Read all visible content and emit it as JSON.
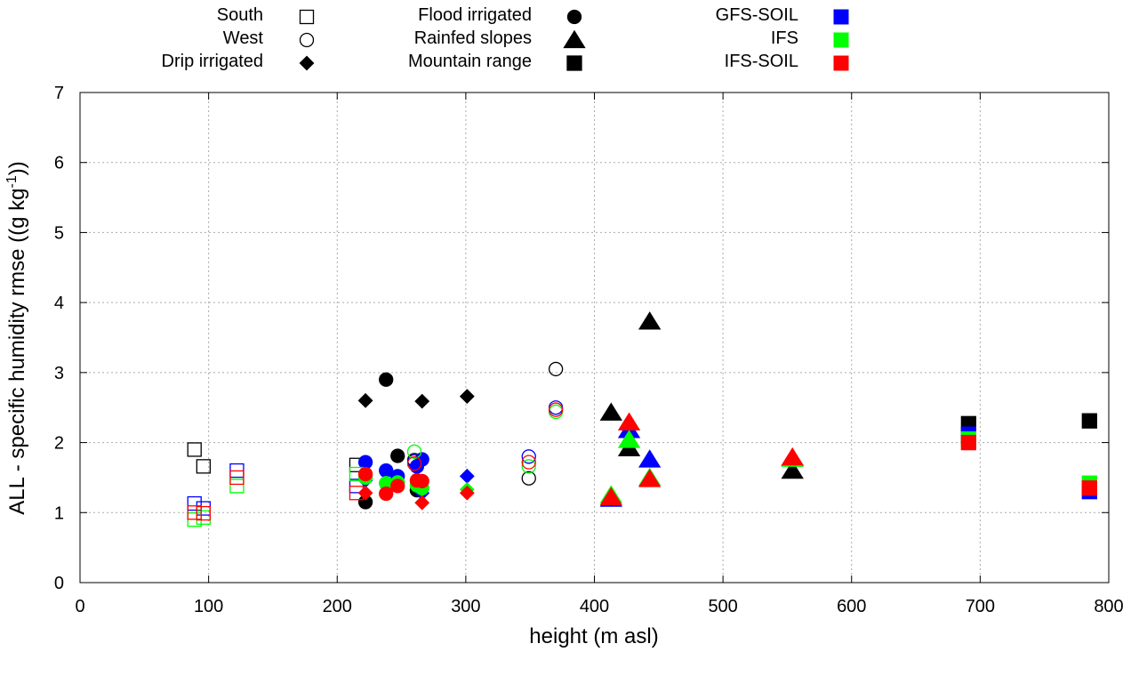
{
  "chart_data": {
    "type": "scatter",
    "title": "",
    "xlabel": "height (m asl)",
    "ylabel_prefix": "ALL - specific humidity rmse ((g kg",
    "ylabel_sup": "-1",
    "ylabel_suffix": "))",
    "xlim": [
      0,
      800
    ],
    "ylim": [
      0,
      7
    ],
    "xticks": [
      0,
      100,
      200,
      300,
      400,
      500,
      600,
      700,
      800
    ],
    "yticks": [
      0,
      1,
      2,
      3,
      4,
      5,
      6,
      7
    ],
    "grid": true,
    "legend_position": "top",
    "legend_groups": [
      {
        "label": "South",
        "marker": "square-open"
      },
      {
        "label": "West",
        "marker": "circle-open"
      },
      {
        "label": "Drip irrigated",
        "marker": "diamond"
      },
      {
        "label": "Flood irrigated",
        "marker": "circle"
      },
      {
        "label": "Rainfed slopes",
        "marker": "triangle"
      },
      {
        "label": "Mountain range",
        "marker": "square"
      }
    ],
    "legend_models": [
      {
        "label": "GFS-SOIL",
        "color": "#0000ff"
      },
      {
        "label": "IFS",
        "color": "#00ff00"
      },
      {
        "label": "IFS-SOIL",
        "color": "#ff0000"
      }
    ],
    "colors": {
      "OBS": "#000000",
      "GFS-SOIL": "#0000ff",
      "IFS": "#00ff00",
      "IFS-SOIL": "#ff0000"
    },
    "series": [
      {
        "name": "OBS",
        "points": [
          {
            "x": 89,
            "y": 1.9,
            "group": "South"
          },
          {
            "x": 96,
            "y": 1.66,
            "group": "South"
          },
          {
            "x": 215,
            "y": 1.68,
            "group": "South"
          },
          {
            "x": 260,
            "y": 1.75,
            "group": "West"
          },
          {
            "x": 349,
            "y": 1.49,
            "group": "West"
          },
          {
            "x": 370,
            "y": 3.05,
            "group": "West"
          },
          {
            "x": 222,
            "y": 2.6,
            "group": "Drip irrigated"
          },
          {
            "x": 266,
            "y": 2.59,
            "group": "Drip irrigated"
          },
          {
            "x": 301,
            "y": 2.66,
            "group": "Drip irrigated"
          },
          {
            "x": 222,
            "y": 1.15,
            "group": "Flood irrigated"
          },
          {
            "x": 238,
            "y": 2.9,
            "group": "Flood irrigated"
          },
          {
            "x": 247,
            "y": 1.81,
            "group": "Flood irrigated"
          },
          {
            "x": 262,
            "y": 1.32,
            "group": "Flood irrigated"
          },
          {
            "x": 413,
            "y": 2.43,
            "group": "Rainfed slopes"
          },
          {
            "x": 427,
            "y": 1.92,
            "group": "Rainfed slopes"
          },
          {
            "x": 443,
            "y": 3.73,
            "group": "Rainfed slopes"
          },
          {
            "x": 554,
            "y": 1.6,
            "group": "Rainfed slopes"
          },
          {
            "x": 691,
            "y": 2.27,
            "group": "Mountain range"
          },
          {
            "x": 785,
            "y": 2.31,
            "group": "Mountain range"
          }
        ]
      },
      {
        "name": "GFS-SOIL",
        "points": [
          {
            "x": 89,
            "y": 1.13,
            "group": "South"
          },
          {
            "x": 96,
            "y": 1.06,
            "group": "South"
          },
          {
            "x": 122,
            "y": 1.6,
            "group": "South"
          },
          {
            "x": 215,
            "y": 1.38,
            "group": "South"
          },
          {
            "x": 260,
            "y": 1.73,
            "group": "West"
          },
          {
            "x": 349,
            "y": 1.8,
            "group": "West"
          },
          {
            "x": 370,
            "y": 2.5,
            "group": "West"
          },
          {
            "x": 222,
            "y": 1.46,
            "group": "Drip irrigated"
          },
          {
            "x": 266,
            "y": 1.28,
            "group": "Drip irrigated"
          },
          {
            "x": 301,
            "y": 1.52,
            "group": "Drip irrigated"
          },
          {
            "x": 222,
            "y": 1.72,
            "group": "Flood irrigated"
          },
          {
            "x": 238,
            "y": 1.6,
            "group": "Flood irrigated"
          },
          {
            "x": 247,
            "y": 1.52,
            "group": "Flood irrigated"
          },
          {
            "x": 262,
            "y": 1.66,
            "group": "Flood irrigated"
          },
          {
            "x": 266,
            "y": 1.76,
            "group": "Flood irrigated"
          },
          {
            "x": 413,
            "y": 1.2,
            "group": "Rainfed slopes"
          },
          {
            "x": 427,
            "y": 2.18,
            "group": "Rainfed slopes"
          },
          {
            "x": 443,
            "y": 1.76,
            "group": "Rainfed slopes"
          },
          {
            "x": 554,
            "y": 1.78,
            "group": "Rainfed slopes"
          },
          {
            "x": 691,
            "y": 2.12,
            "group": "Mountain range"
          },
          {
            "x": 785,
            "y": 1.3,
            "group": "Mountain range"
          }
        ]
      },
      {
        "name": "IFS",
        "points": [
          {
            "x": 89,
            "y": 0.9,
            "group": "South"
          },
          {
            "x": 96,
            "y": 0.93,
            "group": "South"
          },
          {
            "x": 122,
            "y": 1.38,
            "group": "South"
          },
          {
            "x": 215,
            "y": 1.55,
            "group": "South"
          },
          {
            "x": 260,
            "y": 1.87,
            "group": "West"
          },
          {
            "x": 349,
            "y": 1.66,
            "group": "West"
          },
          {
            "x": 370,
            "y": 2.44,
            "group": "West"
          },
          {
            "x": 222,
            "y": 1.53,
            "group": "Drip irrigated"
          },
          {
            "x": 266,
            "y": 1.33,
            "group": "Drip irrigated"
          },
          {
            "x": 301,
            "y": 1.33,
            "group": "Drip irrigated"
          },
          {
            "x": 222,
            "y": 1.5,
            "group": "Flood irrigated"
          },
          {
            "x": 238,
            "y": 1.42,
            "group": "Flood irrigated"
          },
          {
            "x": 247,
            "y": 1.43,
            "group": "Flood irrigated"
          },
          {
            "x": 262,
            "y": 1.39,
            "group": "Flood irrigated"
          },
          {
            "x": 266,
            "y": 1.35,
            "group": "Flood irrigated"
          },
          {
            "x": 413,
            "y": 1.25,
            "group": "Rainfed slopes"
          },
          {
            "x": 427,
            "y": 2.04,
            "group": "Rainfed slopes"
          },
          {
            "x": 443,
            "y": 1.5,
            "group": "Rainfed slopes"
          },
          {
            "x": 554,
            "y": 1.77,
            "group": "Rainfed slopes"
          },
          {
            "x": 691,
            "y": 2.05,
            "group": "Mountain range"
          },
          {
            "x": 785,
            "y": 1.42,
            "group": "Mountain range"
          }
        ]
      },
      {
        "name": "IFS-SOIL",
        "points": [
          {
            "x": 89,
            "y": 1.0,
            "group": "South"
          },
          {
            "x": 96,
            "y": 0.99,
            "group": "South"
          },
          {
            "x": 122,
            "y": 1.5,
            "group": "South"
          },
          {
            "x": 215,
            "y": 1.28,
            "group": "South"
          },
          {
            "x": 260,
            "y": 1.7,
            "group": "West"
          },
          {
            "x": 349,
            "y": 1.72,
            "group": "West"
          },
          {
            "x": 370,
            "y": 2.47,
            "group": "West"
          },
          {
            "x": 222,
            "y": 1.28,
            "group": "Drip irrigated"
          },
          {
            "x": 266,
            "y": 1.14,
            "group": "Drip irrigated"
          },
          {
            "x": 301,
            "y": 1.28,
            "group": "Drip irrigated"
          },
          {
            "x": 222,
            "y": 1.55,
            "group": "Flood irrigated"
          },
          {
            "x": 238,
            "y": 1.27,
            "group": "Flood irrigated"
          },
          {
            "x": 247,
            "y": 1.38,
            "group": "Flood irrigated"
          },
          {
            "x": 262,
            "y": 1.46,
            "group": "Flood irrigated"
          },
          {
            "x": 266,
            "y": 1.45,
            "group": "Flood irrigated"
          },
          {
            "x": 413,
            "y": 1.22,
            "group": "Rainfed slopes"
          },
          {
            "x": 427,
            "y": 2.29,
            "group": "Rainfed slopes"
          },
          {
            "x": 443,
            "y": 1.48,
            "group": "Rainfed slopes"
          },
          {
            "x": 554,
            "y": 1.79,
            "group": "Rainfed slopes"
          },
          {
            "x": 691,
            "y": 2.0,
            "group": "Mountain range"
          },
          {
            "x": 785,
            "y": 1.35,
            "group": "Mountain range"
          }
        ]
      }
    ]
  }
}
